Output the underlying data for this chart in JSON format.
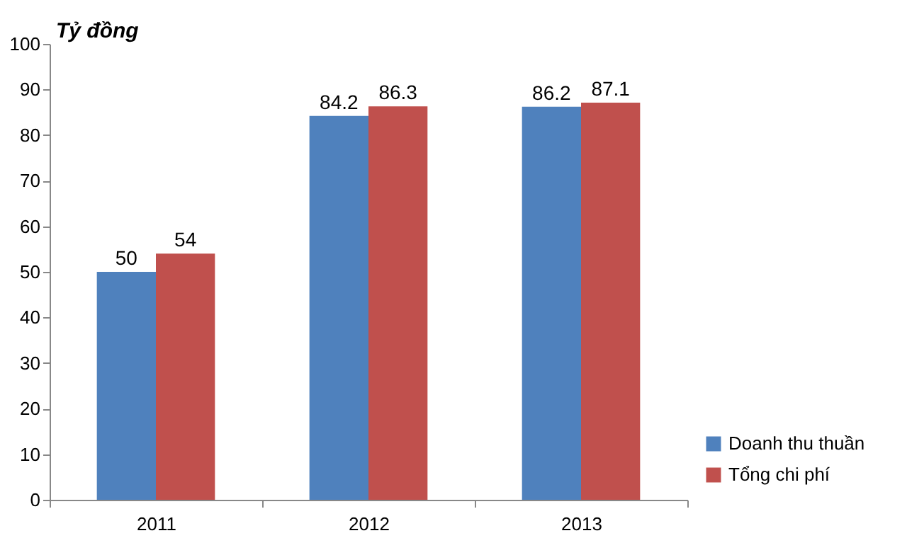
{
  "chart_data": {
    "type": "bar",
    "ylabel": "Tỷ đồng",
    "categories": [
      "2011",
      "2012",
      "2013"
    ],
    "series": [
      {
        "name": "Doanh thu thuần",
        "color": "#4f81bd",
        "values": [
          50,
          84.2,
          86.2
        ]
      },
      {
        "name": "Tổng chi phí",
        "color": "#c0504d",
        "values": [
          54,
          86.3,
          87.1
        ]
      }
    ],
    "ylim": [
      0,
      100
    ],
    "yticks": [
      0,
      10,
      20,
      30,
      40,
      50,
      60,
      70,
      80,
      90,
      100
    ],
    "grid": false,
    "legend": "bottom right",
    "data_labels": true
  }
}
